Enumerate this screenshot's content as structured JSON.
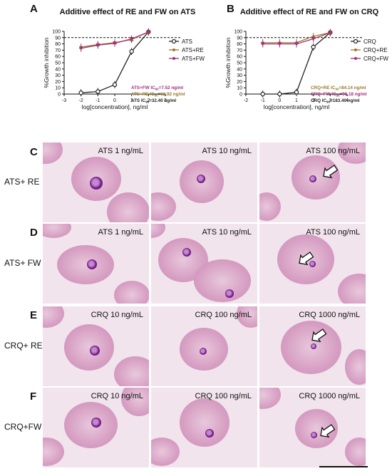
{
  "panel_labels": {
    "A": "A",
    "B": "B",
    "C": "C",
    "D": "D",
    "E": "E",
    "F": "F"
  },
  "chart_data": [
    {
      "type": "line",
      "title": "Additive effect of RE and FW on ATS",
      "xlabel": "log[concentration], ng/ml",
      "ylabel": "%Growth inhibition",
      "xlim": [
        -3,
        3
      ],
      "ylim": [
        0,
        100
      ],
      "xticks": [
        "-3",
        "-2",
        "-1",
        "0",
        "1",
        "2",
        "3"
      ],
      "yticks": [
        "0",
        "10",
        "20",
        "30",
        "40",
        "50",
        "60",
        "70",
        "80",
        "90",
        "100"
      ],
      "reference_line_y": 90,
      "legend": [
        "ATS",
        "ATS+RE",
        "ATS+FW"
      ],
      "legend_position": "right",
      "series_colors": [
        "#222222",
        "#9a7a2a",
        "#a0307a"
      ],
      "series": [
        {
          "name": "ATS",
          "x": [
            -2,
            -1,
            0,
            1,
            2
          ],
          "y": [
            2,
            4,
            15,
            68,
            99
          ]
        },
        {
          "name": "ATS+RE",
          "x": [
            -2,
            -1,
            0,
            1,
            2
          ],
          "y": [
            75,
            79,
            82,
            87,
            99
          ]
        },
        {
          "name": "ATS+FW",
          "x": [
            -2,
            -1,
            0,
            1,
            2
          ],
          "y": [
            73,
            78,
            81,
            88,
            99
          ]
        }
      ],
      "annotations": [
        {
          "text": "ATS+FW IC",
          "sub": "90",
          "tail": "=7.52 ng/ml",
          "color": "#a0307a"
        },
        {
          "text": "ATS+RE IC",
          "sub": "90",
          "tail": "=12.92 ng/ml",
          "color": "#9a7a2a"
        },
        {
          "text": "ATS IC",
          "sub": "90",
          "tail": "=32.40 ng/ml",
          "color": "#222222"
        }
      ]
    },
    {
      "type": "line",
      "title": "Additive effect of RE and FW on CRQ",
      "xlabel": "log[concentration], ng/ml",
      "ylabel": "%Growth inhibition",
      "xlim": [
        -2,
        4
      ],
      "ylim": [
        0,
        100
      ],
      "xticks": [
        "-2",
        "-1",
        "0",
        "1",
        "2",
        "3",
        "4"
      ],
      "yticks": [
        "0",
        "10",
        "20",
        "30",
        "40",
        "50",
        "60",
        "70",
        "80",
        "90",
        "100"
      ],
      "reference_line_y": 90,
      "legend": [
        "CRQ",
        "CRQ+RE",
        "CRQ+FW"
      ],
      "legend_position": "right",
      "series_colors": [
        "#222222",
        "#9a7a2a",
        "#a0307a"
      ],
      "series": [
        {
          "name": "CRQ",
          "x": [
            -1,
            0,
            1,
            2,
            3
          ],
          "y": [
            0,
            0,
            3,
            75,
            98
          ]
        },
        {
          "name": "CRQ+RE",
          "x": [
            -1,
            0,
            1,
            2,
            3
          ],
          "y": [
            82,
            82,
            82,
            92,
            98
          ]
        },
        {
          "name": "CRQ+FW",
          "x": [
            -1,
            0,
            1,
            2,
            3
          ],
          "y": [
            80,
            80,
            80,
            88,
            98
          ]
        }
      ],
      "annotations": [
        {
          "text": "CRQ+RE IC",
          "sub": "90",
          "tail": "=84.14 ng/ml",
          "color": "#9a7a2a"
        },
        {
          "text": "CRQ+FW IC",
          "sub": "90",
          "tail": "=96.18 ng/ml",
          "color": "#a0307a"
        },
        {
          "text": "CRQ IC",
          "sub": "90",
          "tail": "=183.40 ng/ml",
          "color": "#222222"
        }
      ]
    }
  ],
  "micro_rows": [
    {
      "row_label": "ATS+ RE",
      "cells": [
        "ATS 1 ng/mL",
        "ATS 10 ng/mL",
        "ATS 100 ng/mL"
      ]
    },
    {
      "row_label": "ATS+ FW",
      "cells": [
        "ATS 1 ng/mL",
        "ATS 10 ng/mL",
        "ATS 100 ng/mL"
      ]
    },
    {
      "row_label": "CRQ+ RE",
      "cells": [
        "CRQ 10 ng/mL",
        "CRQ 100 ng/mL",
        "CRQ 1000 ng/mL"
      ]
    },
    {
      "row_label": "CRQ+FW",
      "cells": [
        "CRQ 10 ng/mL",
        "CRQ 100 ng/mL",
        "CRQ 1000 ng/mL"
      ]
    }
  ],
  "colors": {
    "background": "#f1e4ec",
    "rbc": "#d7a3c6",
    "parasite": "#7a1f8a"
  }
}
